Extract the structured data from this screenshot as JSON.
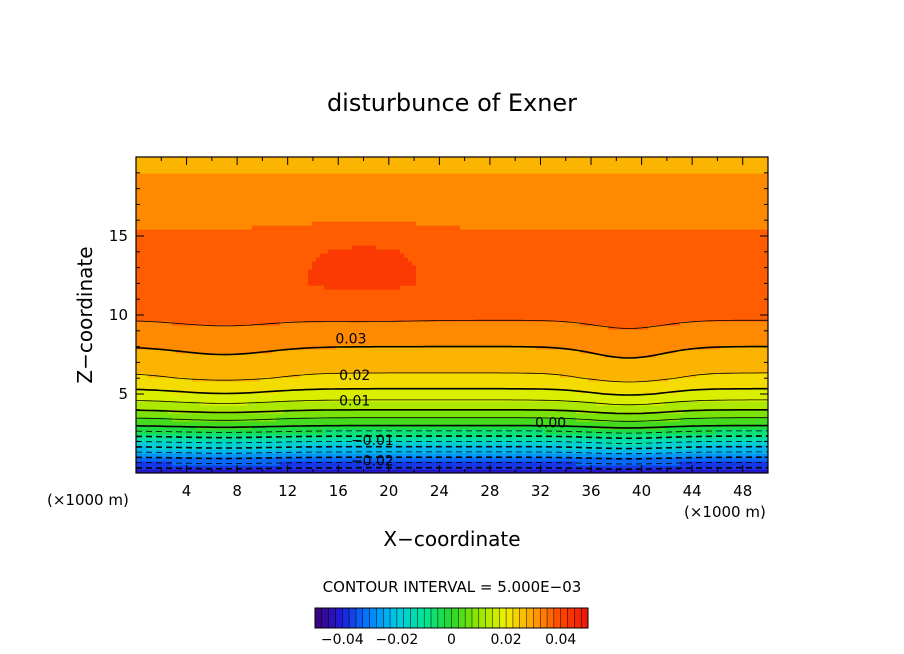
{
  "chart_data": {
    "type": "heatmap",
    "title": "disturbunce of Exner",
    "xlabel": "X−coordinate",
    "ylabel": "Z−coordinate",
    "x_unit": "(×1000 m)",
    "z_unit": "(×1000 m)",
    "xlim": [
      0,
      50
    ],
    "ylim": [
      0,
      20
    ],
    "x_ticks": [
      4,
      8,
      12,
      16,
      20,
      24,
      28,
      32,
      36,
      40,
      44,
      48
    ],
    "y_ticks": [
      5,
      10,
      15
    ],
    "contour_interval_text": "CONTOUR INTERVAL = 5.000E−03",
    "contour_interval": 0.005,
    "colorbar_range": [
      -0.05,
      0.05
    ],
    "colorbar_ticks": [
      "−0.04",
      "−0.02",
      "0",
      "0.02",
      "0.04"
    ],
    "colorbar_tick_values": [
      -0.04,
      -0.02,
      0,
      0.02,
      0.04
    ],
    "contour_labels": [
      {
        "text": "0.03",
        "x": 17.0,
        "z": 8.5
      },
      {
        "text": "0.02",
        "x": 17.3,
        "z": 6.2
      },
      {
        "text": "0.01",
        "x": 17.3,
        "z": 4.6
      },
      {
        "text": "0.00",
        "x": 32.8,
        "z": 3.2
      },
      {
        "text": "−0.01",
        "x": 18.7,
        "z": 2.1
      },
      {
        "text": "−0.02",
        "x": 18.7,
        "z": 0.8
      }
    ],
    "field_profile": {
      "description_keys": [
        "z",
        "value"
      ],
      "points": [
        [
          0,
          -0.045
        ],
        [
          1,
          -0.03
        ],
        [
          2,
          -0.015
        ],
        [
          3,
          0.0
        ],
        [
          4,
          0.01
        ],
        [
          5,
          0.018
        ],
        [
          6,
          0.024
        ],
        [
          8,
          0.03
        ],
        [
          10,
          0.036
        ],
        [
          12,
          0.039
        ],
        [
          14,
          0.038
        ],
        [
          16,
          0.034
        ],
        [
          18,
          0.031
        ],
        [
          20,
          0.029
        ]
      ]
    }
  }
}
